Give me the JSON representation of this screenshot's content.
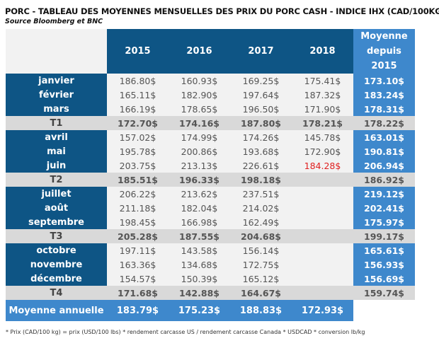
{
  "title": "PORC - TABLEAU DES MOYENNES MENSUELLES DES PRIX DU PORC CASH - INDICE IHX (CAD/100KG)",
  "source": "Source Bloomberg et BNC",
  "headers": {
    "years": [
      "2015",
      "2016",
      "2017",
      "2018"
    ],
    "average": "Moyenne depuis 2015"
  },
  "rows": [
    {
      "label": "janvier",
      "type": "month",
      "values": [
        "186.80$",
        "160.93$",
        "169.25$",
        "175.41$"
      ],
      "avg": "173.10$"
    },
    {
      "label": "février",
      "type": "month",
      "values": [
        "165.11$",
        "182.90$",
        "197.64$",
        "187.32$"
      ],
      "avg": "183.24$"
    },
    {
      "label": "mars",
      "type": "month",
      "values": [
        "166.19$",
        "178.65$",
        "196.50$",
        "171.90$"
      ],
      "avg": "178.31$"
    },
    {
      "label": "T1",
      "type": "quarter",
      "values": [
        "172.70$",
        "174.16$",
        "187.80$",
        "178.21$"
      ],
      "avg": "178.22$"
    },
    {
      "label": "avril",
      "type": "month",
      "values": [
        "157.02$",
        "174.99$",
        "174.26$",
        "145.78$"
      ],
      "avg": "163.01$"
    },
    {
      "label": "mai",
      "type": "month",
      "values": [
        "195.78$",
        "200.86$",
        "193.68$",
        "172.90$"
      ],
      "avg": "190.81$"
    },
    {
      "label": "juin",
      "type": "month",
      "values": [
        "203.75$",
        "213.13$",
        "226.61$",
        "184.28$"
      ],
      "avg": "206.94$",
      "highlight": "#e02020"
    },
    {
      "label": "T2",
      "type": "quarter",
      "values": [
        "185.51$",
        "196.33$",
        "198.18$",
        ""
      ],
      "avg": "186.92$"
    },
    {
      "label": "juillet",
      "type": "month",
      "values": [
        "206.22$",
        "213.62$",
        "237.51$",
        ""
      ],
      "avg": "219.12$"
    },
    {
      "label": "août",
      "type": "month",
      "values": [
        "211.18$",
        "182.04$",
        "214.02$",
        ""
      ],
      "avg": "202.41$"
    },
    {
      "label": "septembre",
      "type": "month",
      "values": [
        "198.45$",
        "166.98$",
        "162.49$",
        ""
      ],
      "avg": "175.97$"
    },
    {
      "label": "T3",
      "type": "quarter",
      "values": [
        "205.28$",
        "187.55$",
        "204.68$",
        ""
      ],
      "avg": "199.17$"
    },
    {
      "label": "octobre",
      "type": "month",
      "values": [
        "197.11$",
        "143.58$",
        "156.14$",
        ""
      ],
      "avg": "165.61$"
    },
    {
      "label": "novembre",
      "type": "month",
      "values": [
        "163.36$",
        "134.68$",
        "172.75$",
        ""
      ],
      "avg": "156.93$"
    },
    {
      "label": "décembre",
      "type": "month",
      "values": [
        "154.57$",
        "150.39$",
        "165.12$",
        ""
      ],
      "avg": "156.69$"
    },
    {
      "label": "T4",
      "type": "quarter",
      "values": [
        "171.68$",
        "142.88$",
        "164.67$",
        ""
      ],
      "avg": "159.74$"
    }
  ],
  "annual": {
    "label": "Moyenne annuelle",
    "values": [
      "183.79$",
      "175.23$",
      "188.83$",
      "172.93$"
    ]
  },
  "footnote": "* Prix (CAD/100 kg) = prix (USD/100 lbs) * rendement carcasse US / rendement carcasse Canada * USDCAD * conversion lb/kg",
  "colors": {
    "label_bg": "#0e5585",
    "avg_bg": "#3e88cc",
    "quarter_bg": "#d9d9d9",
    "cell_bg": "#f2f2f2"
  }
}
